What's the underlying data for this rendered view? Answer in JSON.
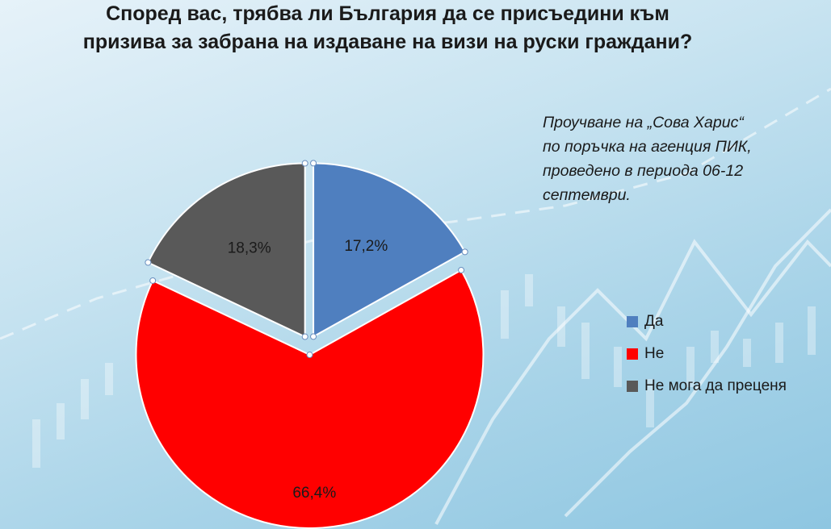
{
  "chart_data": {
    "type": "pie",
    "title": "Според вас, трябва ли България да се присъедини към призива за забрана на издаване на визи на руски граждани?",
    "annotation": "Проучване на „Сова Харис“\nпо поръчка на агенция ПИК,\nпроведено в периода 06-12\nсептември.",
    "slices": [
      {
        "label": "Да",
        "value": 17.2,
        "display": "17,2%",
        "color": "#4f7fbf"
      },
      {
        "label": "Не",
        "value": 66.4,
        "display": "66,4%",
        "color": "#ff0000"
      },
      {
        "label": "Не мога да преценя",
        "value": 18.3,
        "display": "18,3%",
        "color": "#595959"
      }
    ],
    "legend_position": "right",
    "exploded": true
  }
}
